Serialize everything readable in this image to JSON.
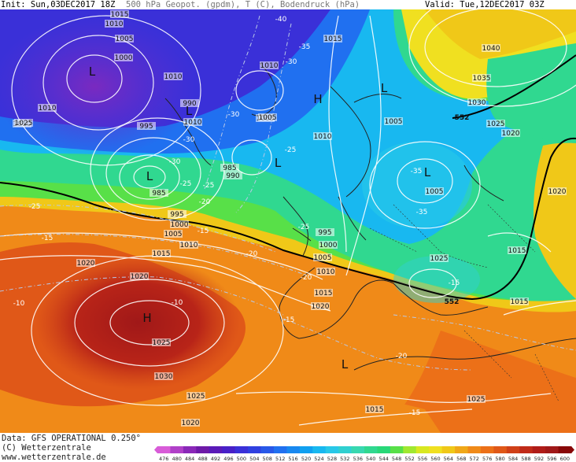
{
  "header": {
    "init": "Init: Sun,03DEC2017 18Z",
    "title": "500 hPa Geopot. (gpdm), T (C), Bodendruck (hPa)",
    "valid": "Valid: Tue,12DEC2017 03Z"
  },
  "footer": {
    "data_source": "Data: GFS OPERATIONAL 0.250°",
    "copyright": "(C) Wetterzentrale",
    "website": "www.wetterzentrale.de"
  },
  "colors": {
    "deep_purple": "#5a1ab8",
    "blue": "#3a5ae0",
    "cyan": "#30c8e8",
    "green": "#28d878",
    "yellow": "#f0e020",
    "orange": "#f08a18",
    "red": "#c02a18",
    "darkred": "#a01818"
  },
  "colorbar": {
    "ticks": [
      "476",
      "480",
      "484",
      "488",
      "492",
      "496",
      "500",
      "504",
      "508",
      "512",
      "516",
      "520",
      "524",
      "528",
      "532",
      "536",
      "540",
      "544",
      "548",
      "552",
      "556",
      "560",
      "564",
      "568",
      "572",
      "576",
      "580",
      "584",
      "588",
      "592",
      "596",
      "600"
    ],
    "colors": [
      "#d85cd8",
      "#b040c8",
      "#8a28b8",
      "#6e1aa8",
      "#5a1ab8",
      "#4820c8",
      "#3a30d8",
      "#3040e0",
      "#2858e8",
      "#2070f0",
      "#1888f0",
      "#10a0f0",
      "#18b8f0",
      "#28c8e8",
      "#30d0d0",
      "#38d8b0",
      "#30d890",
      "#28d878",
      "#58e048",
      "#a0e830",
      "#d8e820",
      "#f0e020",
      "#f0c818",
      "#f0a818",
      "#f08a18",
      "#ec7018",
      "#e05818",
      "#d04018",
      "#c02a18",
      "#b01c18",
      "#a01818",
      "#880808"
    ]
  },
  "map": {
    "pressure_labels": [
      "1015",
      "1010",
      "1005",
      "1000",
      "1010",
      "1010",
      "995",
      "990",
      "985",
      "990",
      "985",
      "995",
      "1000",
      "1005",
      "1010",
      "1015",
      "1015",
      "1010",
      "1005",
      "1010",
      "1005",
      "1040",
      "1035",
      "1030",
      "1025",
      "1020",
      "1020",
      "1005",
      "995",
      "1000",
      "1005",
      "1010",
      "1015",
      "1025",
      "1015",
      "1020",
      "1020",
      "1015",
      "1020",
      "1025",
      "1030",
      "1025",
      "1020",
      "1015",
      "1025",
      "1025",
      "1010",
      "1010",
      "1005"
    ],
    "temp_labels": [
      "-40",
      "-35",
      "-30",
      "-30",
      "-30",
      "-30",
      "-25",
      "-25",
      "-25",
      "-20",
      "-20",
      "-15",
      "-15",
      "-15",
      "-10",
      "-10",
      "-25",
      "-35",
      "-35",
      "-25",
      "-20",
      "-15",
      "-20",
      "-15"
    ],
    "geopot_labels": [
      "552",
      "552"
    ],
    "pressure_centers": [
      "L",
      "L",
      "H",
      "L",
      "L",
      "L",
      "H",
      "L",
      "L"
    ]
  }
}
